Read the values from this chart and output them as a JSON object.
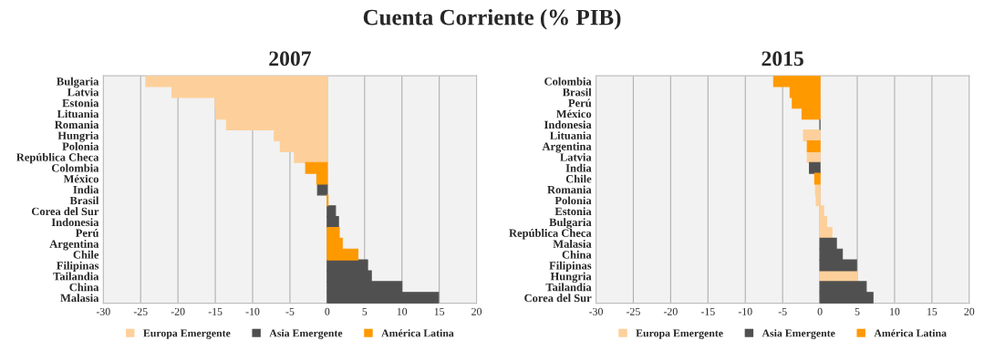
{
  "chart_data": [
    {
      "type": "bar",
      "title": "Cuenta Corriente (% PIB)",
      "subtitle": "2007",
      "orientation": "horizontal",
      "categories": [
        "Bulgaria",
        "Latvia",
        "Estonia",
        "Lituania",
        "Romania",
        "Hungria",
        "Polonia",
        "República Checa",
        "Colombia",
        "México",
        "India",
        "Brasil",
        "Corea del Sur",
        "Indonesia",
        "Perú",
        "Argentina",
        "Chile",
        "Filipinas",
        "Tailandia",
        "China",
        "Malasia"
      ],
      "series": [
        {
          "name": "Europa Emergente",
          "color": "#fdd09b",
          "values": [
            -24.3,
            -20.8,
            -15.0,
            -14.9,
            -13.5,
            -7.1,
            -6.3,
            -4.4,
            null,
            null,
            null,
            null,
            null,
            null,
            null,
            null,
            null,
            null,
            null,
            null,
            null
          ]
        },
        {
          "name": "Asia Emergente",
          "color": "#505050",
          "values": [
            null,
            null,
            null,
            null,
            null,
            null,
            null,
            null,
            null,
            null,
            -1.3,
            null,
            1.1,
            1.5,
            null,
            null,
            null,
            5.4,
            5.9,
            10.0,
            14.9
          ]
        },
        {
          "name": "América Latina",
          "color": "#ff9900",
          "values": [
            null,
            null,
            null,
            null,
            null,
            null,
            null,
            null,
            -2.9,
            -1.4,
            null,
            0.1,
            null,
            null,
            1.6,
            2.0,
            4.1,
            null,
            null,
            null,
            null
          ]
        }
      ],
      "xlim": [
        -30,
        20
      ],
      "xticks": [
        -30,
        -25,
        -20,
        -15,
        -10,
        -5,
        0,
        5,
        10,
        15,
        20
      ],
      "grid": "x",
      "legend": "bottom"
    },
    {
      "type": "bar",
      "subtitle": "2015",
      "orientation": "horizontal",
      "categories": [
        "Colombia",
        "Brasil",
        "Perú",
        "México",
        "Indonesia",
        "Lituania",
        "Argentina",
        "Latvia",
        "India",
        "Chile",
        "Romania",
        "Polonia",
        "Estonia",
        "Bulgaria",
        "República Checa",
        "Malasia",
        "China",
        "Filipinas",
        "Hungria",
        "Tailandia",
        "Corea del Sur"
      ],
      "series": [
        {
          "name": "Europa Emergente",
          "color": "#fdd09b",
          "values": [
            null,
            null,
            null,
            null,
            null,
            -2.2,
            null,
            -1.7,
            null,
            null,
            -0.6,
            -0.5,
            0.5,
            0.9,
            1.6,
            null,
            null,
            null,
            5.0,
            null,
            null
          ]
        },
        {
          "name": "Asia Emergente",
          "color": "#505050",
          "values": [
            null,
            null,
            null,
            null,
            0.0,
            null,
            null,
            null,
            -1.4,
            null,
            null,
            null,
            null,
            null,
            null,
            2.2,
            3.0,
            4.9,
            null,
            6.2,
            7.1
          ]
        },
        {
          "name": "América Latina",
          "color": "#ff9900",
          "values": [
            -6.2,
            -4.0,
            -3.7,
            -2.4,
            null,
            null,
            -1.7,
            null,
            null,
            -0.7,
            null,
            null,
            null,
            null,
            null,
            null,
            null,
            null,
            null,
            null,
            null
          ]
        }
      ],
      "xlim": [
        -30,
        20
      ],
      "xticks": [
        -30,
        -25,
        -20,
        -15,
        -10,
        -5,
        0,
        5,
        10,
        15,
        20
      ],
      "grid": "x",
      "legend": "bottom"
    }
  ]
}
